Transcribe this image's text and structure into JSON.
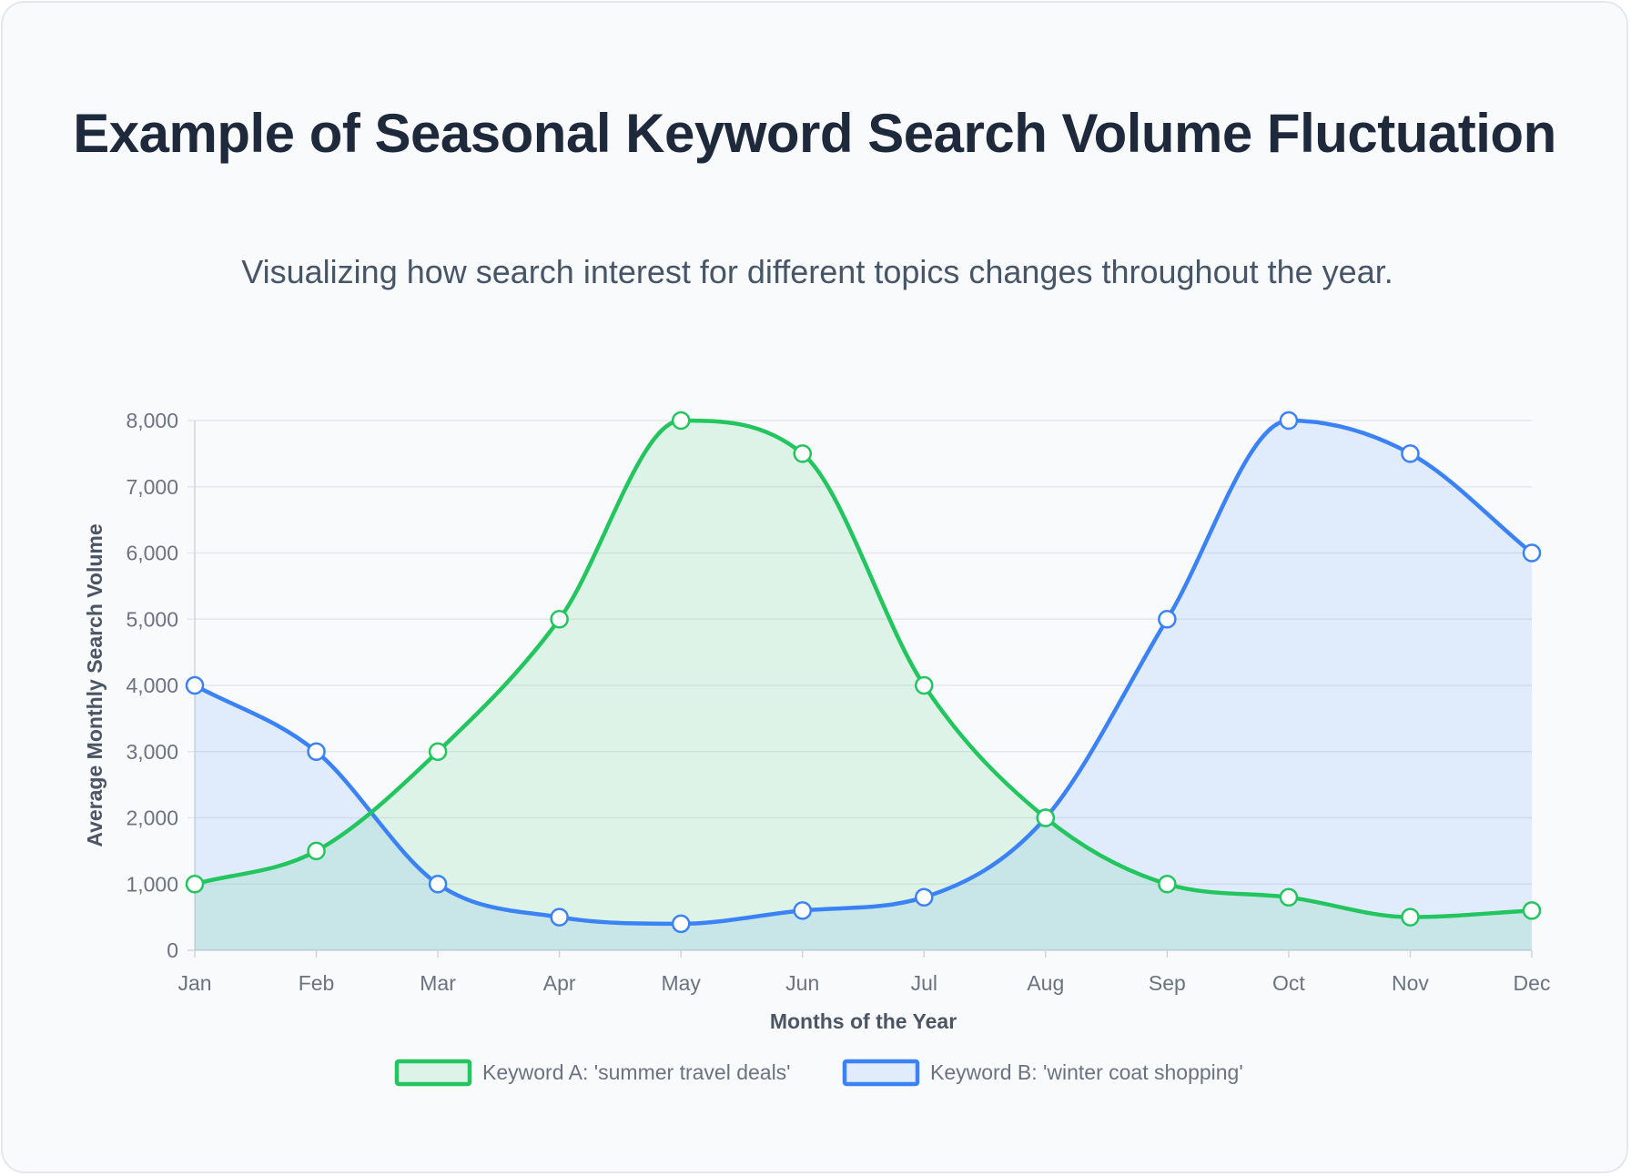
{
  "title": "Example of Seasonal Keyword Search Volume Fluctuation",
  "subtitle": "Visualizing how search interest for different topics changes throughout the year.",
  "chart_data": {
    "type": "line",
    "categories": [
      "Jan",
      "Feb",
      "Mar",
      "Apr",
      "May",
      "Jun",
      "Jul",
      "Aug",
      "Sep",
      "Oct",
      "Nov",
      "Dec"
    ],
    "series": [
      {
        "name": "Keyword A: 'summer travel deals'",
        "values": [
          1000,
          1500,
          3000,
          5000,
          8000,
          7500,
          4000,
          2000,
          1000,
          800,
          500,
          600
        ],
        "color": "#22c55e",
        "fill": "rgba(34,197,94,0.12)"
      },
      {
        "name": "Keyword B: 'winter coat shopping'",
        "values": [
          4000,
          3000,
          1000,
          500,
          400,
          600,
          800,
          2000,
          5000,
          8000,
          7500,
          6000
        ],
        "color": "#3b82f6",
        "fill": "rgba(59,130,246,0.12)"
      }
    ],
    "xlabel": "Months of the Year",
    "ylabel": "Average Monthly Search Volume",
    "ylim": [
      0,
      8000
    ],
    "yticks": [
      "0",
      "1,000",
      "2,000",
      "3,000",
      "4,000",
      "5,000",
      "6,000",
      "7,000",
      "8,000"
    ],
    "area_fill": true,
    "smooth": true,
    "grid": true,
    "legend_position": "bottom"
  }
}
